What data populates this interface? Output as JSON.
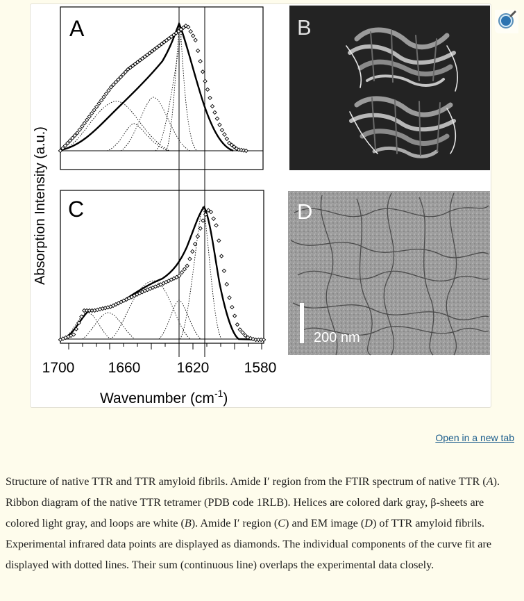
{
  "figure": {
    "panel_labels": {
      "a": "A",
      "b": "B",
      "c": "C",
      "d": "D"
    },
    "y_axis_label": "Absorption Intensity (a.u.)",
    "x_axis_label": "Wavenumber (cm",
    "x_axis_sup": "-1",
    "x_axis_close": ")",
    "x_ticks": [
      "1700",
      "1660",
      "1620",
      "1580"
    ],
    "scale_bar_label": "200 nm",
    "magnifier_icon": "zoom-in-icon"
  },
  "link": {
    "open_new_tab": "Open in a new tab"
  },
  "caption": {
    "p1": "Structure of native TTR and TTR amyloid fibrils. Amide I′ region from the FTIR spectrum of native TTR (",
    "i1": "A",
    "p2": "). Ribbon diagram of the native TTR tetramer (PDB code 1RLB). Helices are colored dark gray, β-sheets are colored light gray, and loops are white (",
    "i2": "B",
    "p3": "). Amide I′ region (",
    "i3": "C",
    "p4": ") and EM image (",
    "i4": "D",
    "p5": ") of TTR amyloid fibrils. Experimental infrared data points are displayed as diamonds. The individual components of the curve fit are displayed with dotted lines. Their sum (continuous line) overlaps the experimental data closely."
  },
  "colors": {
    "background": "#fefcec",
    "link": "#1a5c8c",
    "ink": "#000000"
  },
  "chart_data": [
    {
      "type": "line",
      "panel": "A",
      "x_range": [
        1700,
        1580
      ],
      "y_range": [
        0,
        1
      ],
      "x": [
        1700,
        1690,
        1680,
        1670,
        1660,
        1650,
        1640,
        1632,
        1625,
        1620,
        1615,
        1610,
        1605,
        1600,
        1595,
        1590
      ],
      "y": [
        0.0,
        0.14,
        0.32,
        0.5,
        0.64,
        0.74,
        0.84,
        0.92,
        0.99,
        0.87,
        0.58,
        0.35,
        0.18,
        0.06,
        0.01,
        0.0
      ]
    },
    {
      "type": "line",
      "panel": "C",
      "x_range": [
        1700,
        1580
      ],
      "y_range": [
        0,
        1
      ],
      "x": [
        1700,
        1692,
        1686,
        1680,
        1670,
        1660,
        1650,
        1640,
        1630,
        1625,
        1620,
        1615,
        1612,
        1608,
        1604,
        1600,
        1595,
        1590,
        1585,
        1580
      ],
      "y": [
        0.0,
        0.04,
        0.22,
        0.22,
        0.25,
        0.31,
        0.37,
        0.42,
        0.48,
        0.56,
        0.74,
        0.93,
        0.99,
        0.86,
        0.56,
        0.3,
        0.09,
        0.02,
        0.0,
        0.0
      ]
    }
  ]
}
